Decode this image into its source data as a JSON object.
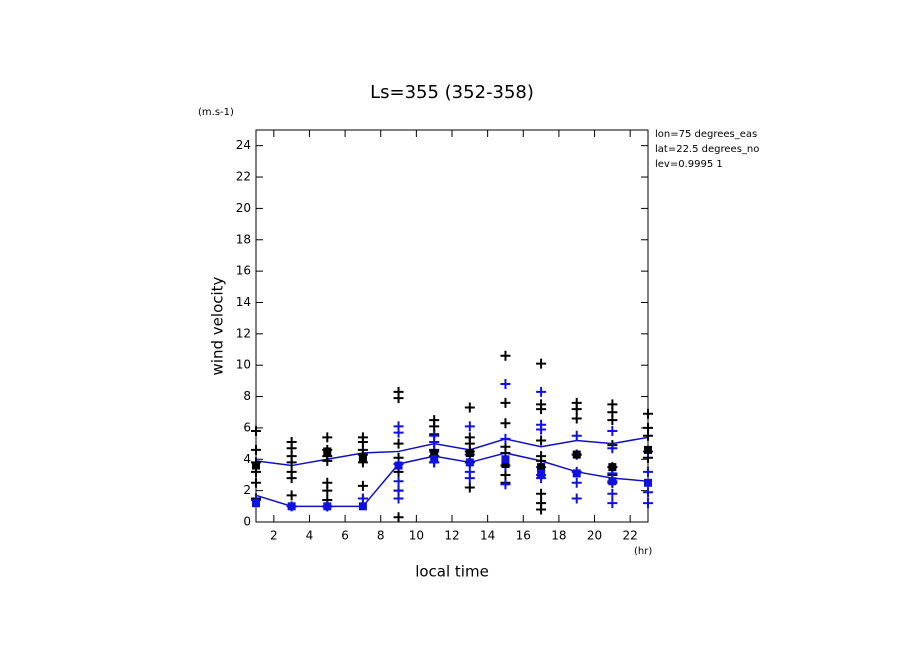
{
  "chart_data": {
    "type": "line",
    "title": "Ls=355 (352-358)",
    "y_unit": "(m.s-1)",
    "x_unit": "(hr)",
    "x_label": "local time",
    "y_label": "wind velocity",
    "annotations": [
      "lon=75 degrees_eas",
      "lat=22.5 degrees_no",
      "lev=0.9995 1"
    ],
    "xlim": [
      1,
      23
    ],
    "ylim": [
      0,
      25
    ],
    "xticks": [
      2,
      4,
      6,
      8,
      10,
      12,
      14,
      16,
      18,
      20,
      22
    ],
    "yticks": [
      0,
      2,
      4,
      6,
      8,
      10,
      12,
      14,
      16,
      18,
      20,
      22,
      24
    ],
    "series": [
      {
        "style": "line",
        "color": "#1010c0",
        "x": [
          1,
          3,
          5,
          7,
          9,
          11,
          13,
          15,
          17,
          19,
          21,
          23
        ],
        "values": [
          3.9,
          3.6,
          4.0,
          4.4,
          4.5,
          5.0,
          4.6,
          5.3,
          4.8,
          5.2,
          5.0,
          5.4
        ]
      },
      {
        "style": "line",
        "color": "#1010c0",
        "x": [
          1,
          3,
          5,
          7,
          9,
          11,
          13,
          15,
          17,
          19,
          21,
          23
        ],
        "values": [
          1.7,
          1.0,
          1.0,
          1.0,
          3.7,
          4.2,
          3.8,
          4.4,
          3.9,
          3.2,
          2.8,
          2.6
        ]
      },
      {
        "style": "plus",
        "color": "#000000",
        "x": [
          1,
          1,
          1,
          1,
          1,
          1,
          3,
          3,
          3,
          3,
          3,
          3,
          3,
          5,
          5,
          5,
          5,
          5,
          5,
          5,
          5,
          7,
          7,
          7,
          7,
          7,
          7,
          7,
          9,
          9,
          9,
          9,
          9,
          9,
          9,
          11,
          11,
          11,
          11,
          11,
          11,
          13,
          13,
          13,
          13,
          13,
          13,
          15,
          15,
          15,
          15,
          15,
          15,
          15,
          17,
          17,
          17,
          17,
          17,
          17,
          17,
          17,
          17,
          19,
          19,
          19,
          19,
          21,
          21,
          21,
          21,
          21,
          21,
          21,
          23,
          23,
          23,
          23
        ],
        "values": [
          5.8,
          4.6,
          3.8,
          3.2,
          2.5,
          1.5,
          5.1,
          4.7,
          4.2,
          3.8,
          3.2,
          2.8,
          1.7,
          5.4,
          4.6,
          4.2,
          3.9,
          2.5,
          2.0,
          1.4,
          1.0,
          5.4,
          5.1,
          4.6,
          4.3,
          3.8,
          2.3,
          1.5,
          8.3,
          7.9,
          5.0,
          4.1,
          3.2,
          2.0,
          0.3,
          6.5,
          6.1,
          5.6,
          4.6,
          4.2,
          3.8,
          7.3,
          5.4,
          5.0,
          4.5,
          3.8,
          2.2,
          10.6,
          7.6,
          6.3,
          4.8,
          4.4,
          3.0,
          2.5,
          10.1,
          7.5,
          7.2,
          5.2,
          4.2,
          3.9,
          1.8,
          1.2,
          0.8,
          7.6,
          7.2,
          6.6,
          4.3,
          7.5,
          7.0,
          6.5,
          4.9,
          3.5,
          3.0,
          2.5,
          6.9,
          6.0,
          5.5,
          4.1
        ]
      },
      {
        "style": "plus",
        "color": "#1010e0",
        "x": [
          1,
          3,
          5,
          7,
          9,
          9,
          9,
          9,
          9,
          9,
          11,
          11,
          11,
          11,
          13,
          13,
          13,
          13,
          15,
          15,
          15,
          15,
          17,
          17,
          17,
          17,
          17,
          17,
          19,
          19,
          19,
          19,
          19,
          21,
          21,
          21,
          21,
          21,
          21,
          23,
          23,
          23,
          23
        ],
        "values": [
          1.4,
          1.0,
          1.0,
          1.5,
          6.1,
          5.7,
          3.7,
          2.6,
          2.0,
          1.5,
          5.5,
          5.1,
          4.5,
          3.8,
          6.1,
          4.3,
          3.2,
          2.8,
          8.8,
          5.3,
          3.6,
          2.4,
          8.3,
          6.2,
          5.9,
          3.5,
          3.0,
          2.8,
          5.5,
          4.3,
          3.2,
          2.5,
          1.5,
          5.8,
          4.7,
          3.1,
          2.6,
          1.8,
          1.2,
          4.5,
          3.2,
          1.9,
          1.2
        ]
      },
      {
        "style": "square",
        "color": "#000000",
        "x": [
          1,
          5,
          7,
          11,
          13,
          15,
          17,
          19,
          21,
          23
        ],
        "values": [
          3.6,
          4.5,
          4.1,
          4.4,
          4.4,
          3.7,
          3.5,
          4.3,
          3.5,
          4.6
        ]
      },
      {
        "style": "square",
        "color": "#1010e0",
        "x": [
          1,
          3,
          5,
          7,
          9,
          11,
          13,
          15,
          17,
          19,
          21,
          23
        ],
        "values": [
          1.2,
          1.0,
          1.0,
          1.0,
          3.6,
          4.0,
          3.8,
          4.0,
          3.1,
          3.1,
          2.6,
          2.5
        ]
      }
    ]
  }
}
